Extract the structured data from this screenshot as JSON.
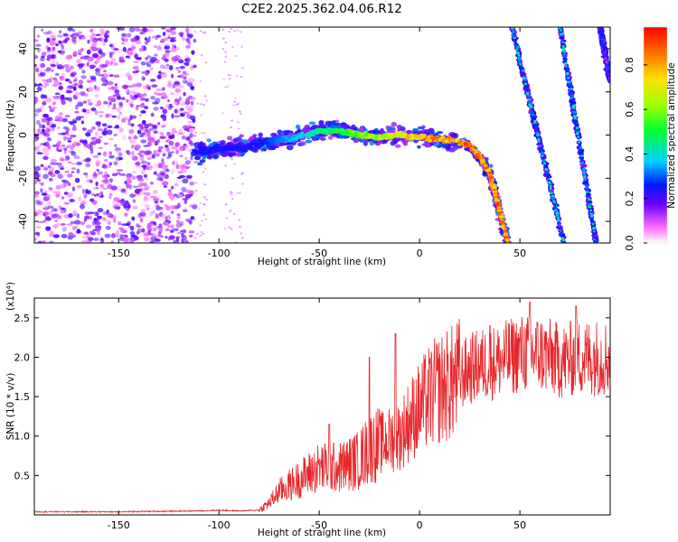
{
  "title": "C2E2.2025.362.04.06.R12",
  "chart_data": [
    {
      "type": "heatmap",
      "name": "spectrogram",
      "xlabel": "Height of straight line (km)",
      "ylabel": "Frequency (Hz)",
      "xlim": [
        -192,
        95
      ],
      "ylim": [
        -50,
        50
      ],
      "xticks": [
        -150,
        -100,
        -50,
        0,
        50
      ],
      "yticks": [
        -40,
        -20,
        0,
        20,
        40
      ],
      "colorbar": {
        "label": "Normalized spectral amplitude",
        "range": [
          0,
          0.97
        ],
        "ticks": [
          0.0,
          0.2,
          0.4,
          0.6,
          0.8
        ],
        "tick_labels": [
          "0.0",
          "0.2",
          "0.4",
          "0.6",
          "0.8"
        ]
      },
      "noise_region": {
        "x_start": -192,
        "x_end": -112,
        "freq_range": [
          -50,
          50
        ],
        "amplitude": 0.1
      },
      "features": [
        {
          "name": "main-track",
          "points": [
            [
              -112,
              -8
            ],
            [
              -100,
              -6
            ],
            [
              -90,
              -6
            ],
            [
              -80,
              -4
            ],
            [
              -70,
              -2
            ],
            [
              -60,
              -1
            ],
            [
              -50,
              2
            ],
            [
              -40,
              2
            ],
            [
              -30,
              0
            ],
            [
              -20,
              -1
            ],
            [
              -10,
              0
            ],
            [
              0,
              -1
            ],
            [
              10,
              -2
            ],
            [
              20,
              -3
            ],
            [
              25,
              -5
            ],
            [
              30,
              -10
            ],
            [
              35,
              -18
            ],
            [
              38,
              -28
            ],
            [
              41,
              -40
            ],
            [
              44,
              -50
            ]
          ],
          "amplitude_range": [
            0.25,
            0.95
          ]
        },
        {
          "name": "aliased-track-1",
          "points": [
            [
              46,
              50
            ],
            [
              72,
              -50
            ]
          ],
          "amplitude_range": [
            0.2,
            0.5
          ]
        },
        {
          "name": "aliased-track-2",
          "points": [
            [
              70,
              50
            ],
            [
              88,
              -50
            ]
          ],
          "amplitude_range": [
            0.2,
            0.5
          ]
        },
        {
          "name": "aliased-track-3",
          "points": [
            [
              90,
              50
            ],
            [
              95,
              25
            ]
          ],
          "amplitude_range": [
            0.1,
            0.3
          ]
        }
      ]
    },
    {
      "type": "line",
      "name": "snr",
      "xlabel": "Height of straight line (km)",
      "ylabel": "SNR (10 * v/v)",
      "scale_label": "(x10⁴)",
      "xlim": [
        -192,
        95
      ],
      "ylim": [
        0,
        2.75
      ],
      "xticks": [
        -150,
        -100,
        -50,
        0,
        50
      ],
      "yticks": [
        0.5,
        1.0,
        1.5,
        2.0,
        2.5
      ],
      "series": [
        {
          "name": "SNR",
          "color": "#e8262a",
          "x": [
            -192,
            -150,
            -110,
            -100,
            -90,
            -80,
            -75,
            -70,
            -60,
            -50,
            -40,
            -30,
            -25,
            -20,
            -15,
            -10,
            -5,
            0,
            5,
            10,
            15,
            20,
            25,
            30,
            40,
            50,
            60,
            70,
            80,
            95
          ],
          "y": [
            0.04,
            0.04,
            0.05,
            0.06,
            0.05,
            0.06,
            0.15,
            0.3,
            0.45,
            0.6,
            0.6,
            0.7,
            0.85,
            0.9,
            0.95,
            1.0,
            1.2,
            1.35,
            1.5,
            1.6,
            1.65,
            1.75,
            1.85,
            1.9,
            1.95,
            2.05,
            2.05,
            1.95,
            2.0,
            2.0
          ],
          "spikes": [
            [
              -45,
              1.15
            ],
            [
              -25,
              2.0
            ],
            [
              -12,
              2.3
            ],
            [
              35,
              2.4
            ],
            [
              55,
              2.7
            ],
            [
              78,
              2.65
            ]
          ]
        }
      ]
    }
  ]
}
